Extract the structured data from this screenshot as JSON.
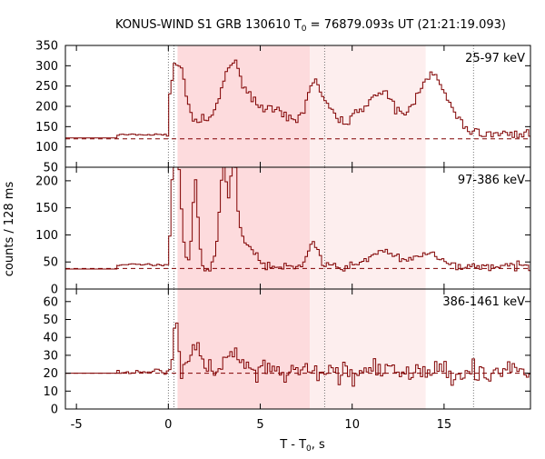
{
  "chart_data": {
    "type": "step",
    "title": "KONUS-WIND S1 GRB 130610 T",
    "title_sub": "0",
    "title_rest": " = 76879.093s UT (21:21:19.093)",
    "xlabel": "T - T",
    "xlabel_sub": "0",
    "xlabel_rest": ", s",
    "ylabel": "counts / 128 ms",
    "xlim": [
      -5.6,
      19.7
    ],
    "x_ticks": [
      -5,
      0,
      5,
      10,
      15
    ],
    "x_tick_labels": [
      "-5",
      "0",
      "5",
      "10",
      "15"
    ],
    "line_color": "#800000",
    "shade_dark": "#fddbdd",
    "shade_light": "#fdeeee",
    "shaded_intervals": [
      {
        "start": 0.5,
        "end": 7.7,
        "shade": "dark"
      },
      {
        "start": 7.7,
        "end": 14.0,
        "shade": "light"
      }
    ],
    "vlines": [
      0.0,
      0.3,
      8.5,
      16.6
    ],
    "panels": [
      {
        "label": "25-97 keV",
        "ylim": [
          50,
          350
        ],
        "y_ticks": [
          50,
          100,
          150,
          200,
          250,
          300,
          350
        ],
        "y_tick_labels": [
          "50",
          "100",
          "150",
          "200",
          "250",
          "300",
          "350"
        ],
        "background": 120,
        "pre_trigger": [
          [
            -5.6,
            122
          ],
          [
            -2.8,
            122
          ],
          [
            -2.8,
            130
          ]
        ],
        "peaks": [
          [
            0.3,
            120,
            0.4
          ],
          [
            0.6,
            70,
            0.3
          ],
          [
            1.5,
            40,
            0.8
          ],
          [
            3.3,
            110,
            0.5
          ],
          [
            3.8,
            70,
            0.8
          ],
          [
            5.5,
            60,
            1.2
          ],
          [
            7.8,
            85,
            0.4
          ],
          [
            8.4,
            60,
            0.6
          ],
          [
            11.0,
            75,
            1.0
          ],
          [
            11.8,
            40,
            0.6
          ],
          [
            14.0,
            105,
            0.7
          ],
          [
            14.8,
            60,
            0.8
          ]
        ],
        "noise": 8,
        "post": 132
      },
      {
        "label": "97-386 keV",
        "ylim": [
          0,
          225
        ],
        "y_ticks": [
          0,
          50,
          100,
          150,
          200
        ],
        "y_tick_labels": [
          "0",
          "50",
          "100",
          "150",
          "200"
        ],
        "background": 38,
        "pre_trigger": [
          [
            -5.6,
            37
          ],
          [
            -2.8,
            37
          ],
          [
            -2.8,
            45
          ]
        ],
        "peaks": [
          [
            0.25,
            180,
            0.15
          ],
          [
            0.5,
            150,
            0.2
          ],
          [
            1.4,
            160,
            0.15
          ],
          [
            2.9,
            145,
            0.2
          ],
          [
            3.3,
            50,
            0.4
          ],
          [
            3.5,
            140,
            0.15
          ],
          [
            4.0,
            45,
            0.6
          ],
          [
            7.8,
            45,
            0.3
          ],
          [
            11.6,
            30,
            0.7
          ],
          [
            14.0,
            25,
            0.6
          ]
        ],
        "noise": 5,
        "post": 42
      },
      {
        "label": "386-1461 keV",
        "ylim": [
          0,
          67
        ],
        "y_ticks": [
          0,
          10,
          20,
          30,
          40,
          50,
          60
        ],
        "y_tick_labels": [
          "0",
          "10",
          "20",
          "30",
          "40",
          "50",
          "60"
        ],
        "background": 20,
        "pre_trigger": [
          [
            -5.6,
            20
          ],
          [
            -2.8,
            20
          ],
          [
            -2.8,
            21
          ]
        ],
        "peaks": [
          [
            0.35,
            34,
            0.12
          ],
          [
            1.5,
            12,
            0.4
          ],
          [
            3.5,
            10,
            0.4
          ]
        ],
        "noise": 4.5,
        "post": 21
      }
    ]
  }
}
